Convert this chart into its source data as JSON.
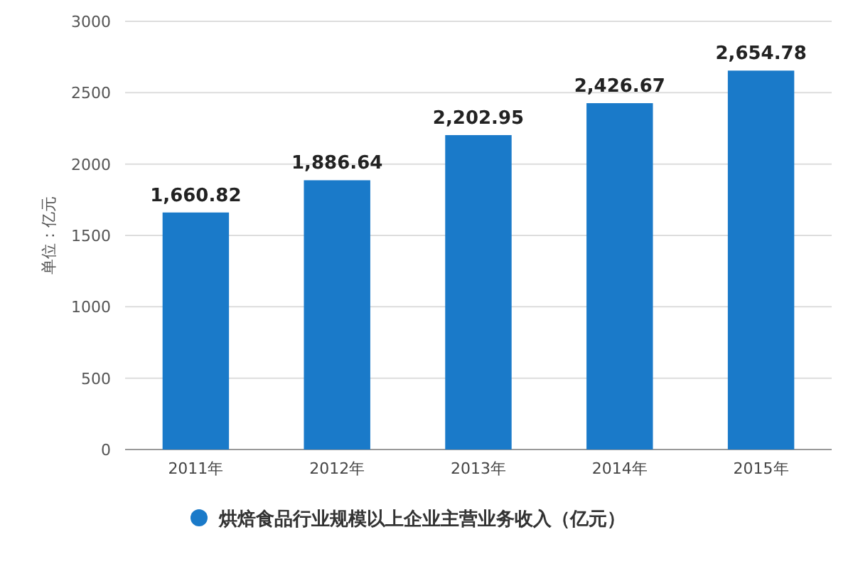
{
  "chart_data": {
    "type": "bar",
    "ylabel": "单位：亿元",
    "categories": [
      "2011年",
      "2012年",
      "2013年",
      "2014年",
      "2015年"
    ],
    "series": [
      {
        "name": "烘焙食品行业规模以上企业主营业务收入（亿元）",
        "color": "#1a7ac9",
        "values": [
          1660.82,
          1886.64,
          2202.95,
          2426.67,
          2654.78
        ],
        "value_labels": [
          "1,660.82",
          "1,886.64",
          "2,202.95",
          "2,426.67",
          "2,654.78"
        ]
      }
    ],
    "ylim": [
      0,
      3000
    ],
    "yticks": [
      0,
      500,
      1000,
      1500,
      2000,
      2500,
      3000
    ],
    "grid": "y",
    "legend": "bottom"
  }
}
